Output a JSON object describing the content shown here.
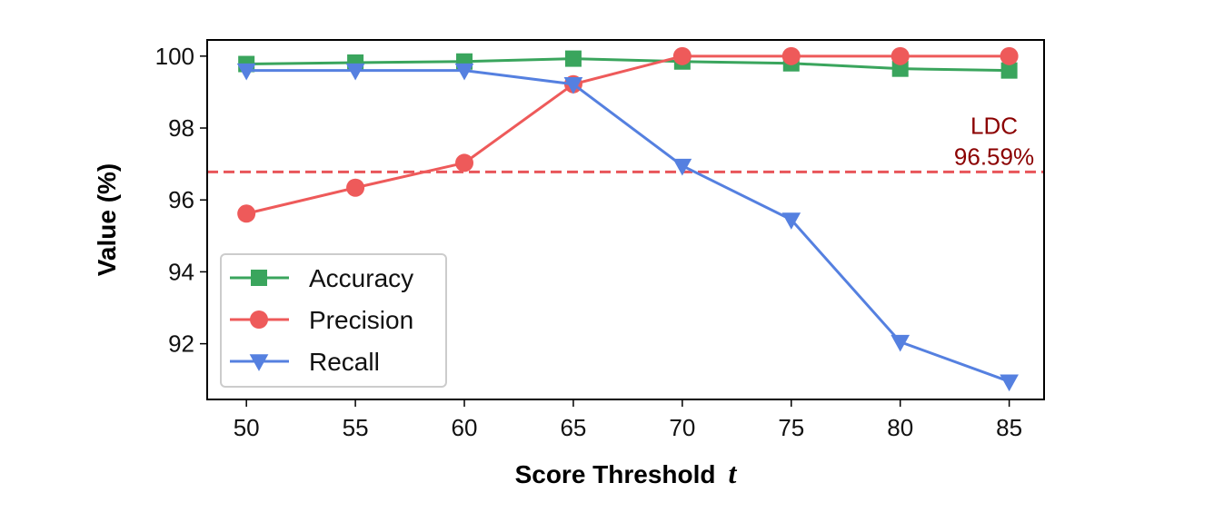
{
  "chart_data": {
    "type": "line",
    "title": "",
    "xlabel": "Score Threshold",
    "xlabel_var": "t",
    "ylabel": "Value (%)",
    "x": [
      50,
      55,
      60,
      65,
      70,
      75,
      80,
      85
    ],
    "xticks": [
      "50",
      "55",
      "60",
      "65",
      "70",
      "75",
      "80",
      "85"
    ],
    "yticks": [
      "92",
      "94",
      "96",
      "98",
      "100"
    ],
    "xlim": [
      48.2,
      86.6
    ],
    "ylim": [
      90.45,
      100.45
    ],
    "grid": false,
    "legend_position": "lower-left",
    "series": [
      {
        "name": "Accuracy",
        "color": "#3aa55d",
        "marker": "square",
        "values": [
          99.78,
          99.82,
          99.85,
          99.93,
          99.85,
          99.8,
          99.65,
          99.6
        ]
      },
      {
        "name": "Precision",
        "color": "#ee5a5a",
        "marker": "circle",
        "values": [
          95.62,
          96.34,
          97.03,
          99.22,
          100.0,
          100.0,
          100.0,
          100.0
        ]
      },
      {
        "name": "Recall",
        "color": "#5580e0",
        "marker": "triangle-down",
        "values": [
          99.6,
          99.6,
          99.6,
          99.22,
          96.95,
          95.45,
          92.05,
          90.95
        ]
      }
    ],
    "reference_line": {
      "y": 96.78,
      "color": "#e8555a",
      "style": "dashed"
    },
    "annotation": {
      "lines": [
        "LDC",
        "96.59%"
      ],
      "color": "#8b0000"
    }
  }
}
